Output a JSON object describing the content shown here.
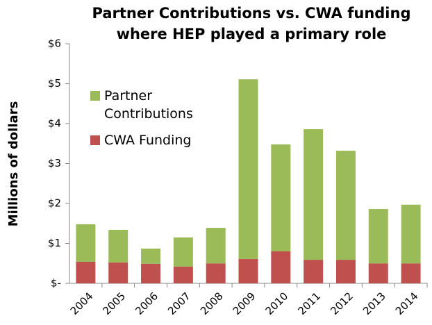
{
  "chart_data": {
    "type": "stacked_bar",
    "title": [
      "Partner Contributions vs. CWA funding",
      "where HEP played a primary role"
    ],
    "y_label": "Millions of dollars",
    "categories": [
      "2004",
      "2005",
      "2006",
      "2007",
      "2008",
      "2009",
      "2010",
      "2011",
      "2012",
      "2013",
      "2014"
    ],
    "series": [
      {
        "name": "Partner Contributions",
        "color": "#9bbb59",
        "values": [
          0.94,
          0.82,
          0.38,
          0.73,
          0.89,
          4.5,
          2.68,
          3.27,
          2.73,
          1.36,
          1.47
        ]
      },
      {
        "name": "CWA Funding",
        "color": "#c0504d",
        "values": [
          0.54,
          0.52,
          0.49,
          0.42,
          0.5,
          0.61,
          0.8,
          0.59,
          0.59,
          0.5,
          0.5
        ]
      }
    ],
    "ylim": [
      0,
      6
    ],
    "yticks": [
      {
        "value": 0,
        "label": "$-"
      },
      {
        "value": 1,
        "label": "$1"
      },
      {
        "value": 2,
        "label": "$2"
      },
      {
        "value": 3,
        "label": "$3"
      },
      {
        "value": 4,
        "label": "$4"
      },
      {
        "value": 5,
        "label": "$5"
      },
      {
        "value": 6,
        "label": "$6"
      }
    ],
    "legend": "upper left"
  }
}
